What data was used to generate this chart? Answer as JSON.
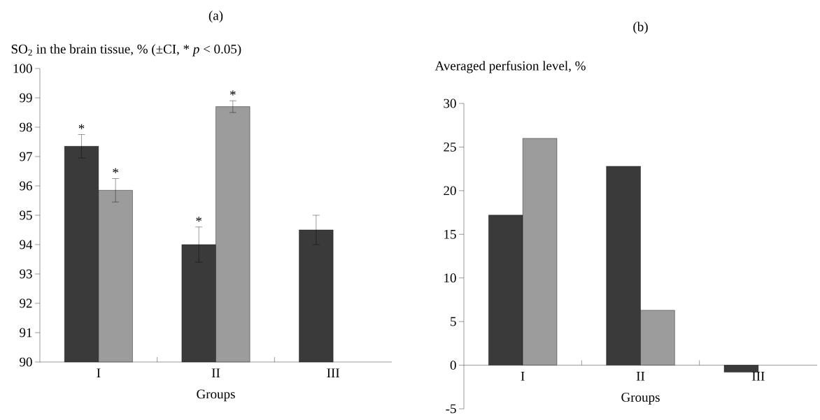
{
  "chart_data": [
    {
      "type": "bar",
      "title": "(a)",
      "ylabel": "SO$_{2}$ in the brain tissue, % (±CI, * *p* < 0.05)",
      "xlabel": "Groups",
      "categories": [
        "I",
        "II",
        "III"
      ],
      "series": [
        {
          "color": "#3a3a3a",
          "values": [
            97.35,
            94.0,
            94.5
          ],
          "errors": [
            0.4,
            0.6,
            0.5
          ]
        },
        {
          "color": "#9c9c9c",
          "values": [
            95.85,
            98.7,
            null
          ],
          "errors": [
            0.4,
            0.2,
            null
          ]
        }
      ],
      "ylim": [
        90,
        100
      ],
      "yticks": [
        90,
        91,
        92,
        93,
        94,
        95,
        96,
        97,
        98,
        99,
        100
      ],
      "annotations": [
        {
          "text": "*",
          "x": "I",
          "y": 97.35
        },
        {
          "text": "*",
          "x": "I",
          "y": 95.85
        },
        {
          "text": "*",
          "x": "II",
          "y": 94.0
        },
        {
          "text": "*",
          "x": "II",
          "y": 98.7
        }
      ],
      "grid": false
    },
    {
      "type": "bar",
      "title": "(b)",
      "ylabel": "Averaged perfusion level, %",
      "xlabel": "Groups",
      "categories": [
        "I",
        "II",
        "III"
      ],
      "series": [
        {
          "color": "#3a3a3a",
          "values": [
            17.2,
            22.8,
            -0.8
          ]
        },
        {
          "color": "#9c9c9c",
          "values": [
            26.0,
            6.3,
            null
          ]
        }
      ],
      "ylim": [
        -5,
        30
      ],
      "yticks": [
        -5,
        0,
        5,
        10,
        15,
        20,
        25,
        30
      ],
      "grid": false
    }
  ]
}
